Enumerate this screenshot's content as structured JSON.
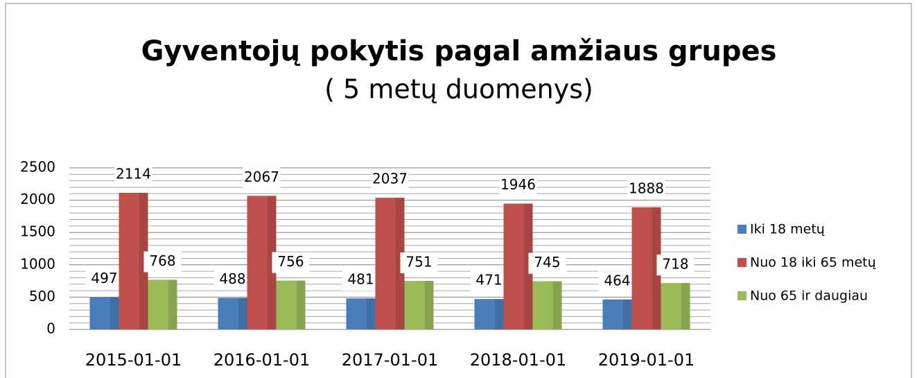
{
  "chart_data": {
    "type": "bar",
    "title": "Gyventojų pokytis pagal amžiaus grupes",
    "subtitle": "( 5 metų duomenys)",
    "categories": [
      "2015-01-01",
      "2016-01-01",
      "2017-01-01",
      "2018-01-01",
      "2019-01-01"
    ],
    "series": [
      {
        "name": "Iki 18 metų",
        "color": "#4a7ebb",
        "values": [
          497,
          488,
          481,
          471,
          464
        ]
      },
      {
        "name": "Nuo 18 iki 65 metų",
        "color": "#c0504d",
        "values": [
          2114,
          2067,
          2037,
          1946,
          1888
        ]
      },
      {
        "name": "Nuo 65 ir daugiau",
        "color": "#9bbb59",
        "values": [
          768,
          756,
          751,
          745,
          718
        ]
      }
    ],
    "ylim": [
      0,
      2500
    ],
    "yticks": [
      0,
      500,
      1000,
      1500,
      2000,
      2500
    ],
    "minor_yticks": [
      100,
      200,
      300,
      400,
      600,
      700,
      800,
      900,
      1100,
      1200,
      1300,
      1400,
      1600,
      1700,
      1800,
      1900,
      2100,
      2200,
      2300,
      2400
    ],
    "grid": true,
    "legend": "right"
  }
}
